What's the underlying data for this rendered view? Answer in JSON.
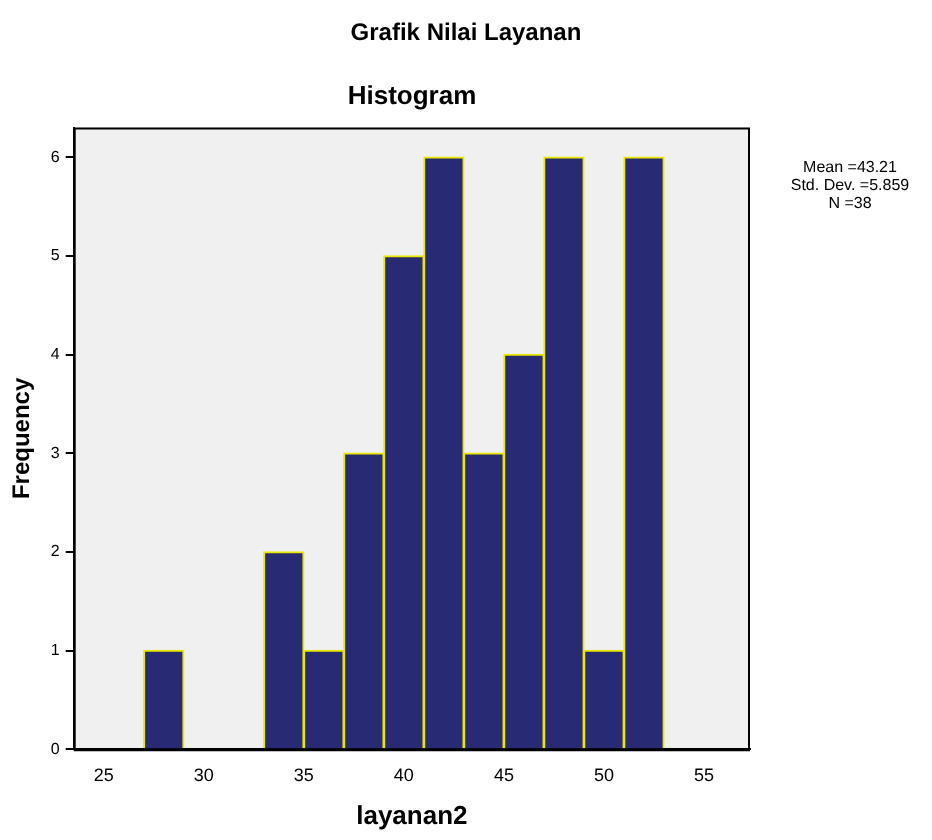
{
  "chart_data": {
    "type": "histogram",
    "title": "Grafik Nilai Layanan",
    "subtitle": "Histogram",
    "xlabel": "layanan2",
    "ylabel": "Frequency",
    "bins": [
      27,
      29,
      31,
      33,
      35,
      37,
      39,
      41,
      43,
      45,
      47,
      49,
      51,
      53
    ],
    "values": [
      1,
      0,
      0,
      2,
      1,
      3,
      5,
      6,
      3,
      4,
      6,
      1,
      6
    ],
    "color": "#282a73",
    "xlim": [
      23.5,
      57.3
    ],
    "xticks": [
      25,
      30,
      35,
      40,
      45,
      50,
      55
    ],
    "ylim": [
      0,
      6.3
    ],
    "yticks": [
      0,
      1,
      2,
      3,
      4,
      5,
      6
    ],
    "grid": false,
    "legend": false,
    "annotations": [
      "Mean =43.21",
      "Std. Dev. =5.859",
      "N =38"
    ]
  }
}
